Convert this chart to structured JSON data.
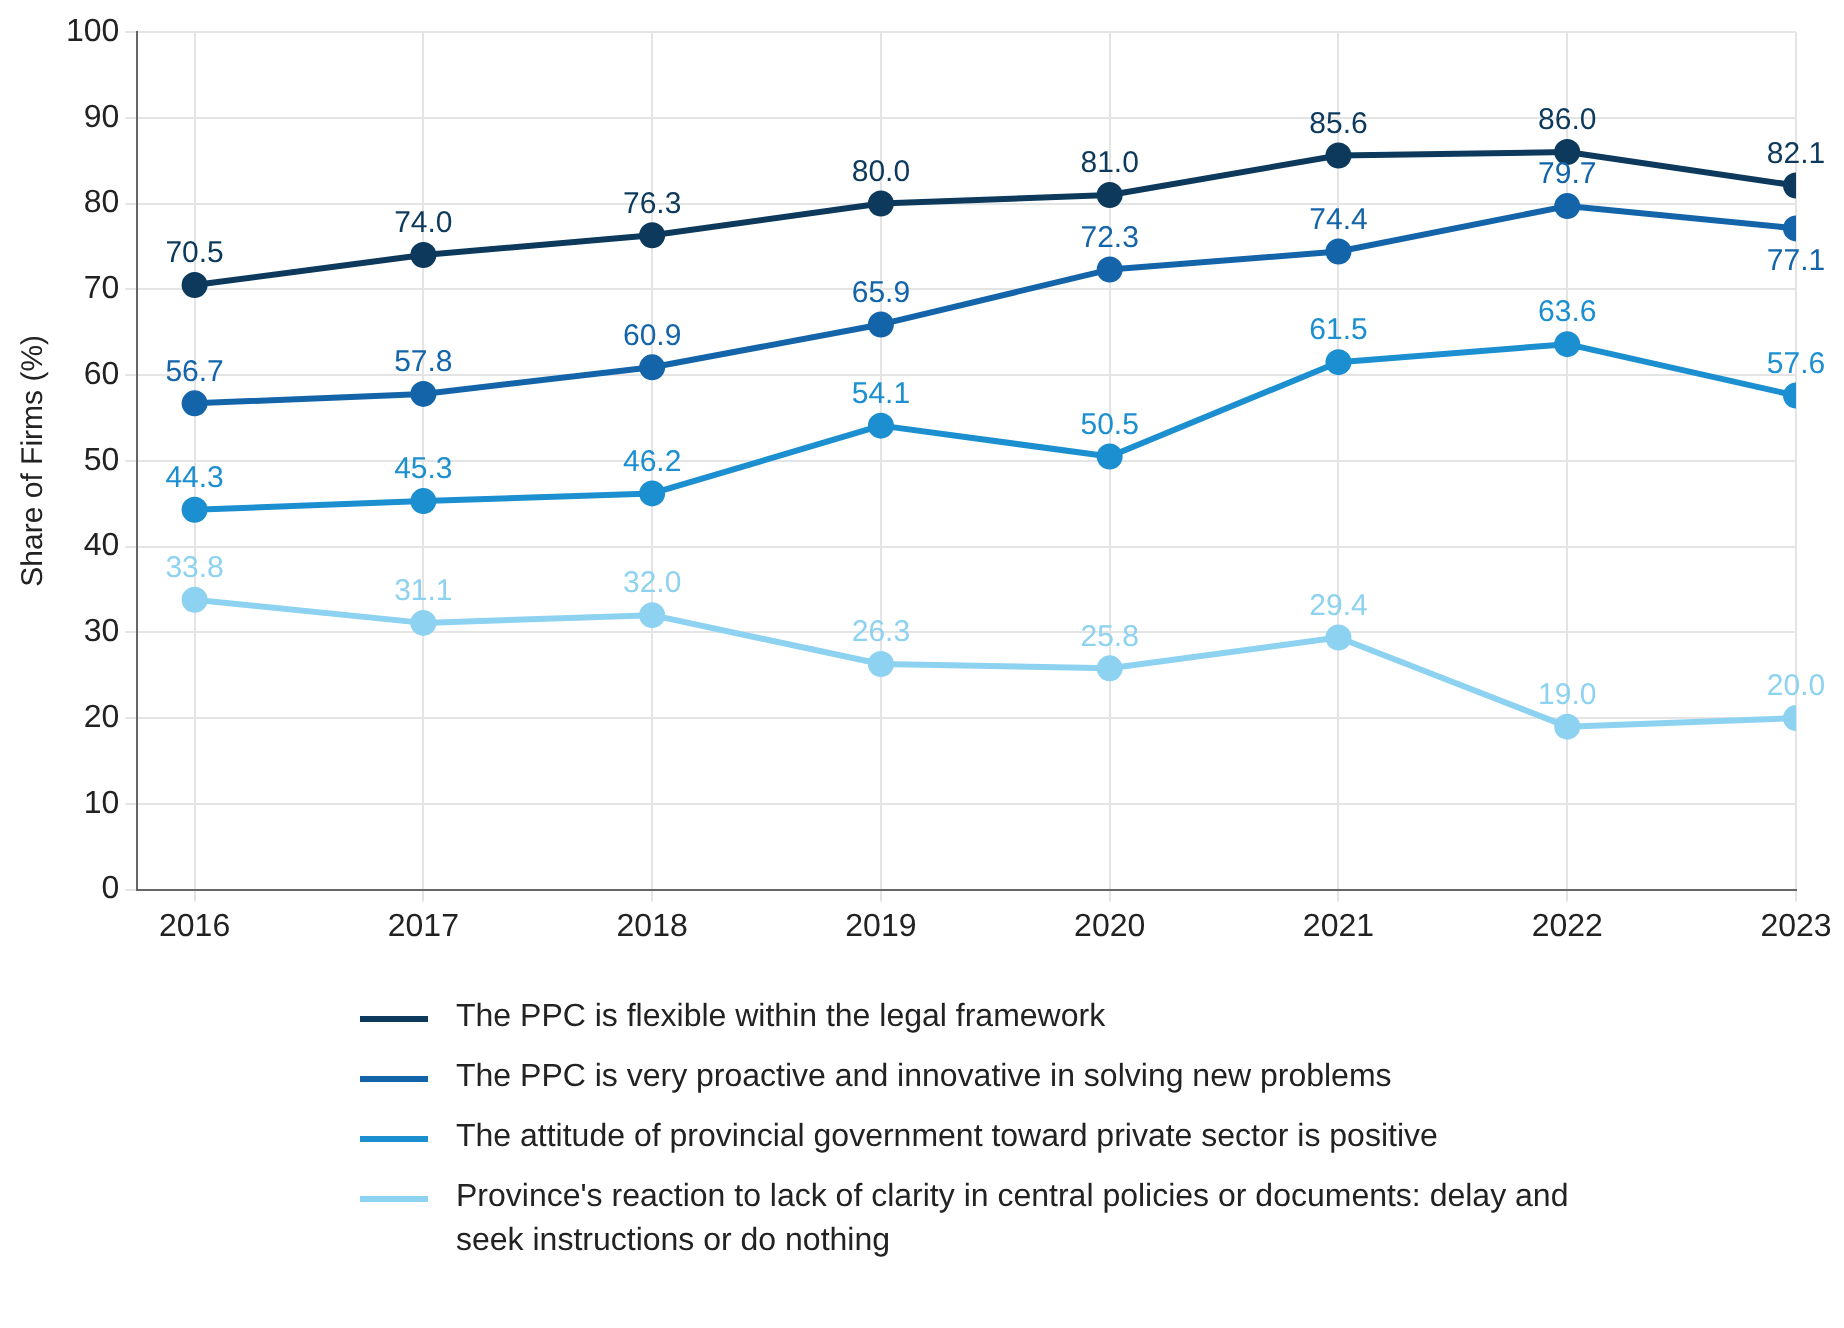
{
  "chart_data": {
    "type": "line",
    "ylabel": "Share of Firms (%)",
    "categories": [
      "2016",
      "2017",
      "2018",
      "2019",
      "2020",
      "2021",
      "2022",
      "2023"
    ],
    "series": [
      {
        "name": "The PPC is flexible within the legal framework",
        "color": "#0d3a5c",
        "values": [
          70.5,
          74,
          76.3,
          80,
          81,
          85.6,
          86,
          82.1
        ],
        "value_labels": [
          "70.5",
          "74.0",
          "76.3",
          "80.0",
          "81.0",
          "85.6",
          "86.0",
          "82.1"
        ]
      },
      {
        "name": "The PPC is very proactive and innovative in solving new problems",
        "color": "#1464aa",
        "values": [
          56.7,
          57.8,
          60.9,
          65.9,
          72.3,
          74.4,
          79.7,
          77.1
        ],
        "value_labels": [
          "56.7",
          "57.8",
          "60.9",
          "65.9",
          "72.3",
          "74.4",
          "79.7",
          "77.1"
        ]
      },
      {
        "name": "The attitude of provincial government toward private sector is positive",
        "color": "#1b8fd0",
        "values": [
          44.3,
          45.3,
          46.2,
          54.1,
          50.5,
          61.5,
          63.6,
          57.6
        ],
        "value_labels": [
          "44.3",
          "45.3",
          "46.2",
          "54.1",
          "50.5",
          "61.5",
          "63.6",
          "57.6"
        ]
      },
      {
        "name": "Province's reaction to lack of clarity in central policies or documents: delay and seek instructions or do nothing",
        "color": "#8dd2f0",
        "values": [
          33.8,
          31.1,
          32,
          26.3,
          25.8,
          29.4,
          19,
          20
        ],
        "value_labels": [
          "33.8",
          "31.1",
          "32.0",
          "26.3",
          "25.8",
          "29.4",
          "19.0",
          "20.0"
        ]
      }
    ],
    "ylim": [
      0,
      100
    ],
    "yticks": [
      0,
      10,
      20,
      30,
      40,
      50,
      60,
      70,
      80,
      90,
      100
    ],
    "grid": true,
    "legend": "bottom",
    "marker": "circle",
    "line_style": "solid"
  }
}
